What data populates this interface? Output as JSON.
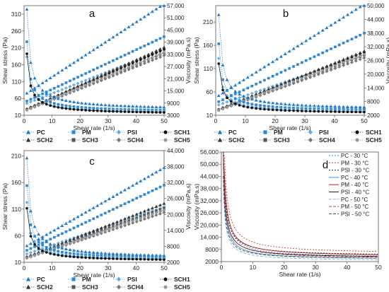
{
  "chart_data": [
    {
      "id": "a",
      "type": "line",
      "panel_label": "a",
      "xlabel": "Shear rate (1/s)",
      "ylabel": "Shear stress (Pa)",
      "y2label": "Viscosity (mPa.s)",
      "xlim": [
        0,
        50
      ],
      "ylim": [
        10,
        335
      ],
      "y2lim": [
        3000,
        57000
      ],
      "xticks": [
        "0",
        "10",
        "20",
        "30",
        "40",
        "50"
      ],
      "yticks": [
        "10",
        "60",
        "110",
        "160",
        "210",
        "260",
        "310"
      ],
      "y2ticks": [
        "3000",
        "9000",
        "15,000",
        "21,000",
        "27,000",
        "33,000",
        "39,000",
        "45,000",
        "51,000",
        "57,000"
      ],
      "legend": [
        "PC",
        "PM",
        "PSI",
        "SCH1",
        "SCH2",
        "SCH3",
        "SCH4",
        "SCH5"
      ],
      "stress_series": [
        {
          "name": "PC",
          "color": "#1f78c8",
          "marker": "triangle",
          "y0": 70,
          "slope": 5.4
        },
        {
          "name": "PM",
          "color": "#2e86d1",
          "marker": "square",
          "y0": 48,
          "slope": 3.9
        },
        {
          "name": "PSI",
          "color": "#6aaee0",
          "marker": "diamond",
          "y0": 42,
          "slope": 3.25
        },
        {
          "name": "SCH1",
          "color": "#111111",
          "marker": "circle",
          "y0": 25,
          "slope": 3.6
        },
        {
          "name": "SCH2",
          "color": "#333333",
          "marker": "triangle",
          "y0": 24,
          "slope": 3.75
        },
        {
          "name": "SCH3",
          "color": "#555555",
          "marker": "square",
          "y0": 23,
          "slope": 3.45
        },
        {
          "name": "SCH4",
          "color": "#777777",
          "marker": "diamond",
          "y0": 22,
          "slope": 3.3
        },
        {
          "name": "SCH5",
          "color": "#999999",
          "marker": "circle",
          "y0": 22,
          "slope": 3.5
        }
      ],
      "viscosity_series": [
        {
          "name": "PC",
          "color": "#1f78c8",
          "marker": "triangle",
          "A": 50000,
          "inf": 5200
        },
        {
          "name": "PM",
          "color": "#2e86d1",
          "marker": "square",
          "A": 35000,
          "inf": 4200
        },
        {
          "name": "PSI",
          "color": "#6aaee0",
          "marker": "diamond",
          "A": 28000,
          "inf": 3800
        },
        {
          "name": "SCH1",
          "color": "#111111",
          "marker": "circle",
          "A": 30000,
          "inf": 3300
        }
      ]
    },
    {
      "id": "b",
      "type": "line",
      "panel_label": "b",
      "xlabel": "Shear rate (1/s)",
      "ylabel": "Shear stress (Pa)",
      "y2label": "Viscosity (mPa.s)",
      "xlim": [
        0,
        50
      ],
      "ylim": [
        10,
        245
      ],
      "y2lim": [
        2000,
        50000
      ],
      "xticks": [
        "0",
        "10",
        "20",
        "30",
        "40",
        "50"
      ],
      "yticks": [
        "10",
        "60",
        "110",
        "160",
        "210"
      ],
      "y2ticks": [
        "2000",
        "8000",
        "14,000",
        "20,000",
        "26,000",
        "32,000",
        "38,000",
        "44,000",
        "50,000"
      ],
      "legend": [
        "PC",
        "PM",
        "PSI",
        "SCH1",
        "SCH2",
        "SCH3",
        "SCH4",
        "SCH5"
      ],
      "stress_series": [
        {
          "name": "PC",
          "color": "#1f78c8",
          "marker": "triangle",
          "y0": 48,
          "slope": 4.0
        },
        {
          "name": "PM",
          "color": "#2e86d1",
          "marker": "square",
          "y0": 36,
          "slope": 3.0
        },
        {
          "name": "PSI",
          "color": "#6aaee0",
          "marker": "diamond",
          "y0": 30,
          "slope": 2.2
        },
        {
          "name": "SCH1",
          "color": "#111111",
          "marker": "circle",
          "y0": 20,
          "slope": 2.5
        },
        {
          "name": "SCH2",
          "color": "#333333",
          "marker": "triangle",
          "y0": 20,
          "slope": 2.55
        },
        {
          "name": "SCH3",
          "color": "#555555",
          "marker": "square",
          "y0": 19,
          "slope": 2.4
        },
        {
          "name": "SCH4",
          "color": "#777777",
          "marker": "diamond",
          "y0": 18,
          "slope": 2.3
        },
        {
          "name": "SCH5",
          "color": "#999999",
          "marker": "circle",
          "y0": 18,
          "slope": 2.45
        }
      ],
      "viscosity_series": [
        {
          "name": "PC",
          "color": "#1f78c8",
          "marker": "triangle",
          "A": 42000,
          "inf": 4000
        },
        {
          "name": "PM",
          "color": "#2e86d1",
          "marker": "square",
          "A": 30000,
          "inf": 3300
        },
        {
          "name": "PSI",
          "color": "#6aaee0",
          "marker": "diamond",
          "A": 24000,
          "inf": 2900
        },
        {
          "name": "SCH1",
          "color": "#111111",
          "marker": "circle",
          "A": 22000,
          "inf": 2600
        }
      ]
    },
    {
      "id": "c",
      "type": "line",
      "panel_label": "c",
      "xlabel": "Shear rate (1/s)",
      "ylabel": "Shear stress (Pa)",
      "y2label": "Viscosity (mPa.s)",
      "xlim": [
        0,
        50
      ],
      "ylim": [
        10,
        220
      ],
      "y2lim": [
        2000,
        44000
      ],
      "xticks": [
        "0",
        "10",
        "20",
        "30",
        "40",
        "50"
      ],
      "yticks": [
        "10",
        "60",
        "110",
        "160",
        "210"
      ],
      "y2ticks": [
        "2000",
        "8000",
        "14,000",
        "20,000",
        "26,000",
        "32,000",
        "38,000",
        "44,000"
      ],
      "legend": [
        "PC",
        "PM",
        "PSI",
        "SCH1",
        "SCH2",
        "SCH3",
        "SCH4",
        "SCH5"
      ],
      "stress_series": [
        {
          "name": "PC",
          "color": "#1f78c8",
          "marker": "triangle",
          "y0": 38,
          "slope": 3.0
        },
        {
          "name": "PM",
          "color": "#2e86d1",
          "marker": "square",
          "y0": 30,
          "slope": 2.5
        },
        {
          "name": "PSI",
          "color": "#6aaee0",
          "marker": "diamond",
          "y0": 24,
          "slope": 1.8
        },
        {
          "name": "SCH1",
          "color": "#111111",
          "marker": "circle",
          "y0": 18,
          "slope": 1.8
        },
        {
          "name": "SCH2",
          "color": "#333333",
          "marker": "triangle",
          "y0": 18,
          "slope": 2.05
        },
        {
          "name": "SCH3",
          "color": "#555555",
          "marker": "square",
          "y0": 17,
          "slope": 1.9
        },
        {
          "name": "SCH4",
          "color": "#777777",
          "marker": "diamond",
          "y0": 16,
          "slope": 1.75
        },
        {
          "name": "SCH5",
          "color": "#999999",
          "marker": "circle",
          "y0": 16,
          "slope": 1.85
        }
      ],
      "viscosity_series": [
        {
          "name": "PC",
          "color": "#1f78c8",
          "marker": "triangle",
          "A": 38000,
          "inf": 3200
        },
        {
          "name": "PM",
          "color": "#2e86d1",
          "marker": "square",
          "A": 28000,
          "inf": 2800
        },
        {
          "name": "PSI",
          "color": "#6aaee0",
          "marker": "diamond",
          "A": 22000,
          "inf": 2500
        },
        {
          "name": "SCH1",
          "color": "#111111",
          "marker": "circle",
          "A": 20000,
          "inf": 2300
        }
      ]
    },
    {
      "id": "d",
      "type": "line",
      "panel_label": "d",
      "xlabel": "Shear rate (1/s)",
      "ylabel": "Viscosity (mPa.s)",
      "xlim": [
        0,
        50
      ],
      "ylim": [
        2000,
        56000
      ],
      "xticks": [
        "0",
        "10",
        "20",
        "30",
        "40",
        "50"
      ],
      "yticks": [
        "2000",
        "8000",
        "14,000",
        "20,000",
        "26,000",
        "32,000",
        "38,000",
        "44,000",
        "50,000",
        "56,000"
      ],
      "legend_placement": "top-right",
      "series": [
        {
          "name": "PC - 30 °C",
          "color": "#3a8fd9",
          "dash": "2,2",
          "A": 38000,
          "inf": 3600
        },
        {
          "name": "PM - 30 °C",
          "color": "#d03a3a",
          "dash": "2,2",
          "A": 48000,
          "inf": 5600
        },
        {
          "name": "PSI - 30 °C",
          "color": "#222222",
          "dash": "2,2",
          "A": 36000,
          "inf": 4600
        },
        {
          "name": "PC - 40 °C",
          "color": "#3a8fd9",
          "dash": "",
          "A": 30000,
          "inf": 2800
        },
        {
          "name": "PM - 40 °C",
          "color": "#b02424",
          "dash": "",
          "A": 40000,
          "inf": 4200
        },
        {
          "name": "PSI - 40 °C",
          "color": "#222222",
          "dash": "",
          "A": 32000,
          "inf": 3600
        },
        {
          "name": "PC - 50 °C",
          "color": "#7bb8e8",
          "dash": "4,2",
          "A": 24000,
          "inf": 2200
        },
        {
          "name": "PM - 50 °C",
          "color": "#d03a3a",
          "dash": "4,2",
          "A": 34000,
          "inf": 3200
        },
        {
          "name": "PSI - 50 °C",
          "color": "#444444",
          "dash": "4,2",
          "A": 26000,
          "inf": 2900
        }
      ]
    }
  ]
}
